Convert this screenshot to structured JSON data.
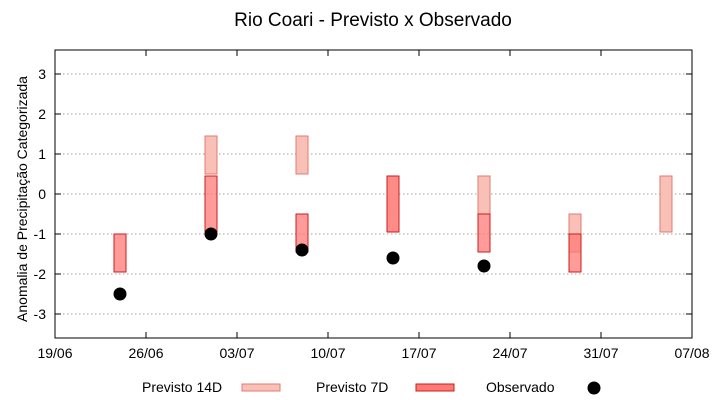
{
  "chart_data": {
    "type": "range-bar",
    "title": "Rio Coari - Previsto x Observado",
    "ylabel": "Anomalia de Precipitação Categorizada",
    "xlabel": "",
    "ylim": [
      -3.6,
      3.6
    ],
    "yticks": [
      -3,
      -2,
      -1,
      0,
      1,
      2,
      3
    ],
    "x_tick_labels": [
      "19/06",
      "26/06",
      "03/07",
      "10/07",
      "17/07",
      "24/07",
      "31/07",
      "07/08"
    ],
    "grid": "horizontal dotted",
    "legend_position": "bottom",
    "colors": {
      "previsto_14d_fill": "#f9c0b8",
      "previsto_14d_stroke": "#e07b70",
      "previsto_7d_fill": "#ff7a75",
      "previsto_7d_stroke": "#c81e1e",
      "observado": "#000000"
    },
    "series": [
      {
        "name": "Previsto 14D",
        "kind": "range",
        "data": [
          {
            "x": "01/07",
            "low": 0.5,
            "high": 1.45
          },
          {
            "x": "08/07",
            "low": 0.5,
            "high": 1.45
          },
          {
            "x": "15/07",
            "low": -0.95,
            "high": 0.45
          },
          {
            "x": "22/07",
            "low": -0.5,
            "high": 0.45
          },
          {
            "x": "29/07",
            "low": -1.45,
            "high": -0.5
          },
          {
            "x": "05/08",
            "low": -0.95,
            "high": 0.45
          }
        ]
      },
      {
        "name": "Previsto 7D",
        "kind": "range",
        "data": [
          {
            "x": "24/06",
            "low": -1.95,
            "high": -1.0
          },
          {
            "x": "01/07",
            "low": -0.95,
            "high": 0.45
          },
          {
            "x": "08/07",
            "low": -1.45,
            "high": -0.5
          },
          {
            "x": "15/07",
            "low": -0.95,
            "high": 0.45
          },
          {
            "x": "22/07",
            "low": -1.45,
            "high": -0.5
          },
          {
            "x": "29/07",
            "low": -1.95,
            "high": -1.0
          }
        ]
      },
      {
        "name": "Observado",
        "kind": "point",
        "data": [
          {
            "x": "24/06",
            "y": -2.5
          },
          {
            "x": "01/07",
            "y": -1.0
          },
          {
            "x": "08/07",
            "y": -1.4
          },
          {
            "x": "15/07",
            "y": -1.6
          },
          {
            "x": "22/07",
            "y": -1.8
          }
        ]
      }
    ]
  }
}
